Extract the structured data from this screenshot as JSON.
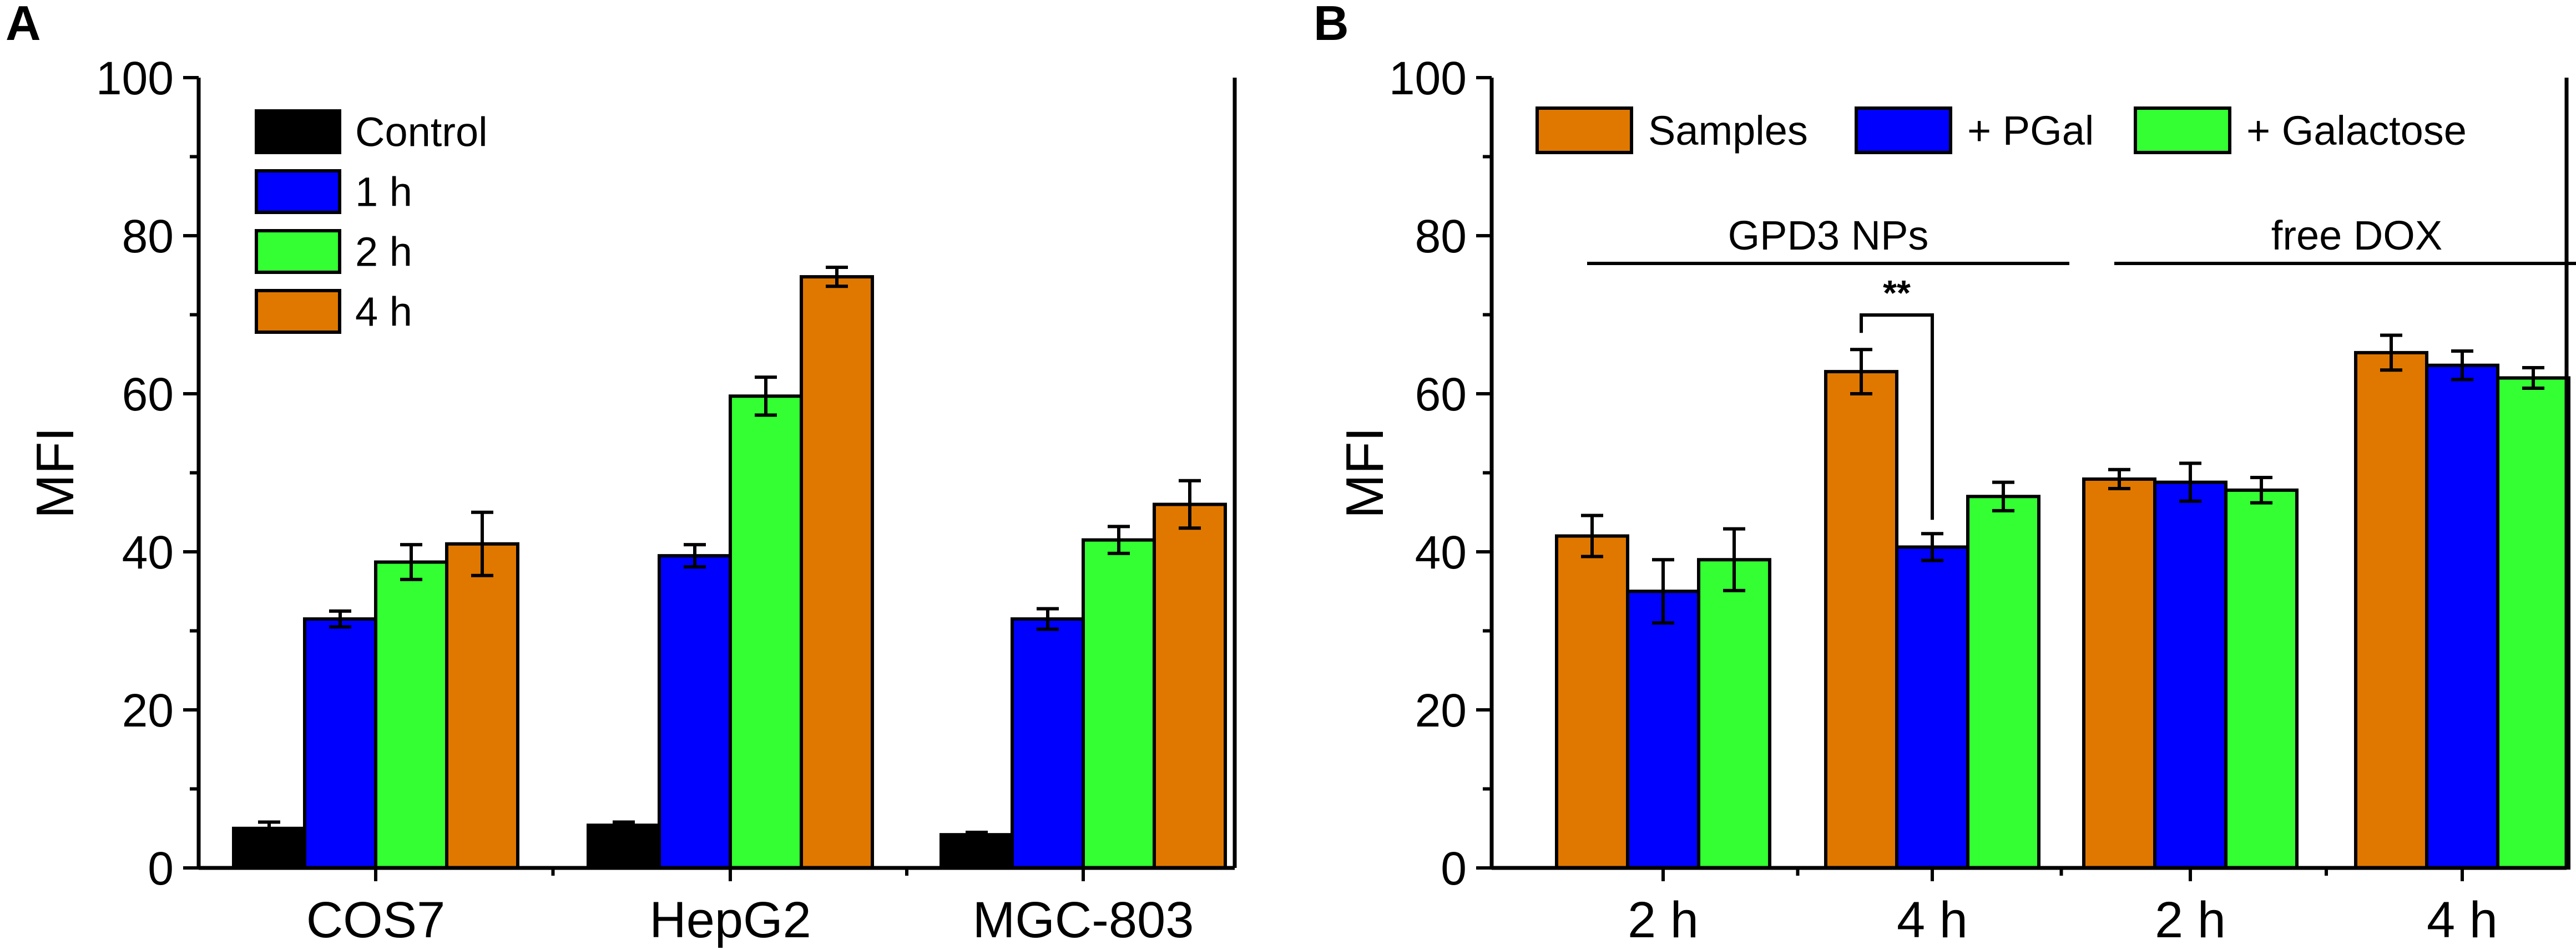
{
  "chart_data": [
    {
      "panel": "A",
      "type": "bar",
      "ylabel": "MFI",
      "xlabel": "",
      "ylim": [
        0,
        100
      ],
      "yticks": [
        0,
        20,
        40,
        60,
        80,
        100
      ],
      "categories": [
        "COS7",
        "HepG2",
        "MGC-803"
      ],
      "series": [
        {
          "name": "Control",
          "color": "#000000",
          "values": [
            5.0,
            5.4,
            4.2
          ],
          "errors": [
            0.8,
            0.4,
            0.3
          ]
        },
        {
          "name": "1 h",
          "color": "#0000ff",
          "values": [
            31.5,
            39.5,
            31.5
          ],
          "errors": [
            1.0,
            1.4,
            1.3
          ]
        },
        {
          "name": "2 h",
          "color": "#33ff33",
          "values": [
            38.7,
            59.7,
            41.5
          ],
          "errors": [
            2.2,
            2.4,
            1.7
          ]
        },
        {
          "name": "4 h",
          "color": "#e07800",
          "values": [
            41.0,
            74.8,
            46.0
          ],
          "errors": [
            4.0,
            1.2,
            3.0
          ]
        }
      ],
      "legend_position": "top-left"
    },
    {
      "panel": "B",
      "type": "bar",
      "ylabel": "MFI",
      "xlabel": "",
      "ylim": [
        0,
        100
      ],
      "yticks": [
        0,
        20,
        40,
        60,
        80,
        100
      ],
      "categories": [
        "2 h",
        "4 h",
        "2 h",
        "4 h"
      ],
      "groups": [
        {
          "label": "GPD3 NPs",
          "categories": [
            0,
            1
          ]
        },
        {
          "label": "free DOX",
          "categories": [
            2,
            3
          ]
        }
      ],
      "series": [
        {
          "name": "Samples",
          "color": "#e07800",
          "values": [
            42.0,
            62.8,
            49.2,
            65.2
          ],
          "errors": [
            2.6,
            2.8,
            1.2,
            2.2
          ]
        },
        {
          "name": "+ PGal",
          "color": "#0000ff",
          "values": [
            35.0,
            40.6,
            48.8,
            63.6
          ],
          "errors": [
            4.0,
            1.7,
            2.4,
            1.8
          ]
        },
        {
          "name": "+ Galactose",
          "color": "#33ff33",
          "values": [
            39.0,
            47.0,
            47.8,
            62.0
          ],
          "errors": [
            3.9,
            1.8,
            1.6,
            1.3
          ]
        }
      ],
      "annotations": [
        {
          "text": "**",
          "category": 1,
          "between": [
            "Samples",
            "+ PGal"
          ]
        }
      ],
      "legend_position": "top"
    }
  ]
}
